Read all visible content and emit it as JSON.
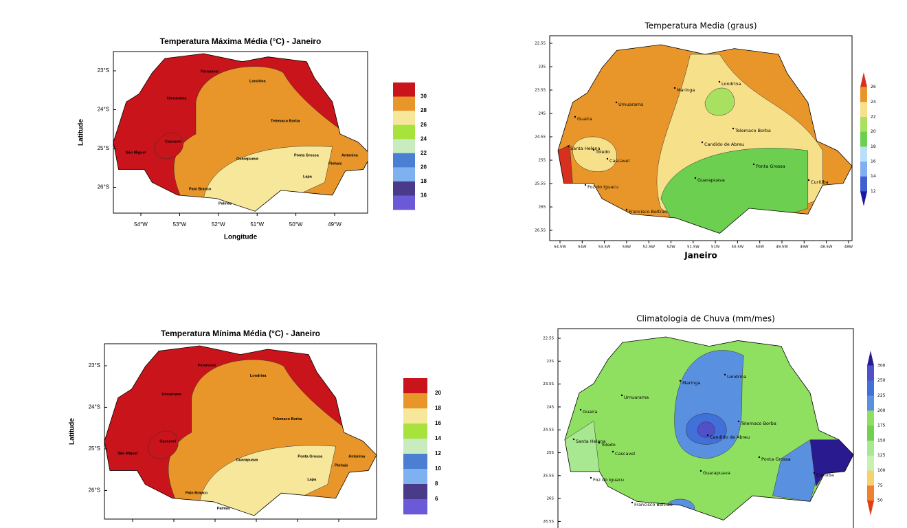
{
  "maps": [
    {
      "title": "Temperatura Máxima Média (°C) - Janeiro",
      "yticks": [
        "23°S",
        "24°S",
        "25°S",
        "26°S"
      ],
      "xticks": [
        "54°W",
        "53°W",
        "52°W",
        "51°W",
        "50°W",
        "49°W"
      ],
      "xlabel": "Longitude",
      "ylabel": "Latitude",
      "cities": [
        "Paranavai",
        "Londrina",
        "Umuarama",
        "Telemaco Borba",
        "Cascavel",
        "São Miguel",
        "Guarapuava",
        "Ponta Grossa",
        "Antonina",
        "Pinhais",
        "Lapa",
        "Pato Branco",
        "Palmas"
      ],
      "legend": {
        "labels": [
          30,
          28,
          26,
          24,
          22,
          20,
          18,
          16
        ],
        "colors": [
          "#c8141a",
          "#e8962a",
          "#f7e79a",
          "#a8e23c",
          "#c8ecc0",
          "#4a7fd4",
          "#7fb0f0",
          "#4a3a8a",
          "#6a5ad8"
        ]
      }
    },
    {
      "title": "Temperatura Media (graus)",
      "yticks": [
        "22.5S",
        "23S",
        "23.5S",
        "24S",
        "24.5S",
        "25S",
        "25.5S",
        "26S",
        "26.5S"
      ],
      "xticks": [
        "54.5W",
        "54W",
        "53.5W",
        "53W",
        "52.5W",
        "52W",
        "51.5W",
        "51W",
        "50.5W",
        "50W",
        "49.5W",
        "49W",
        "48.5W",
        "48W"
      ],
      "xlabel": "Janeiro",
      "cities": [
        "Londrina",
        "Maringa",
        "Umuarama",
        "Guaira",
        "Telemaco Borba",
        "Candido de Abreu",
        "Santa Helena",
        "Toledo",
        "Cascavel",
        "Ponta Grossa",
        "Curitiba",
        "Guarapuava",
        "Foz do Iguacu",
        "Francisco Beltrao"
      ],
      "legend": {
        "labels": [
          26,
          24,
          22,
          20,
          18,
          16,
          14,
          12
        ],
        "colors": [
          "#d7301f",
          "#e8962a",
          "#f7e08a",
          "#a8e060",
          "#6ccf50",
          "#b8e0f8",
          "#80b0f0",
          "#4060d0",
          "#1818a0"
        ]
      }
    },
    {
      "title": "Temperatura Mínima Média (°C) - Janeiro",
      "yticks": [
        "23°S",
        "24°S",
        "25°S",
        "26°S"
      ],
      "ylabel": "Latitude",
      "cities": [
        "Paranavai",
        "Londrina",
        "Umuarama",
        "Telemaco Borba",
        "Cascavel",
        "São Miguel",
        "Guarapuava",
        "Ponta Grossa",
        "Antonina",
        "Pinhais",
        "Lapa",
        "Pato Branco",
        "Palmas"
      ],
      "legend": {
        "labels": [
          20,
          18,
          16,
          14,
          12,
          10,
          8,
          6
        ],
        "colors": [
          "#c8141a",
          "#e8962a",
          "#f7e79a",
          "#a8e23c",
          "#c8ecc0",
          "#4a7fd4",
          "#7fb0f0",
          "#4a3a8a",
          "#6a5ad8"
        ]
      }
    },
    {
      "title": "Climatologia de Chuva (mm/mes)",
      "yticks": [
        "22.5S",
        "23S",
        "23.5S",
        "24S",
        "24.5S",
        "25S",
        "25.5S",
        "26S",
        "26.5S"
      ],
      "cities": [
        "Londrina",
        "Maringa",
        "Umuarama",
        "Guaira",
        "Telemaco Borba",
        "Candido de Abreu",
        "Santa Helena",
        "Toledo",
        "Cascavel",
        "Ponta Grossa",
        "Curitiba",
        "Guarapuava",
        "Foz do Iguacu",
        "Francisco Beltrao"
      ],
      "legend": {
        "labels": [
          300,
          250,
          225,
          200,
          175,
          150,
          125,
          100,
          75,
          50
        ],
        "colors": [
          "#2a1a90",
          "#5050c8",
          "#4070d8",
          "#5a90e0",
          "#8fe060",
          "#70d050",
          "#a8e890",
          "#c8f0b0",
          "#f7d070",
          "#f08030",
          "#e04010"
        ]
      }
    }
  ]
}
